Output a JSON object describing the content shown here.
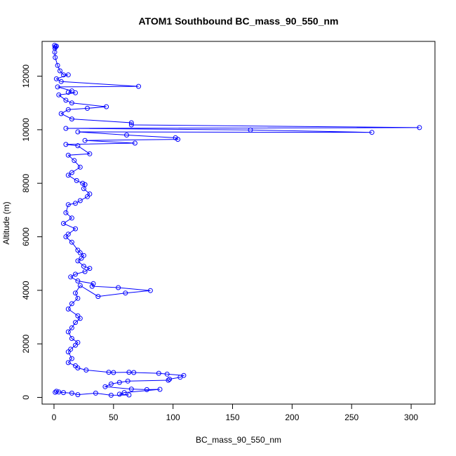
{
  "chart_data": {
    "type": "line",
    "title": "ATOM1 Southbound BC_mass_90_550_nm",
    "xlabel": "BC_mass_90_550_nm",
    "ylabel": "Altitude (m)",
    "xlim": [
      -10,
      320
    ],
    "ylim": [
      -250,
      13300
    ],
    "x_ticks": [
      0,
      50,
      100,
      150,
      200,
      250,
      300
    ],
    "y_ticks": [
      0,
      2000,
      4000,
      6000,
      8000,
      10000,
      12000
    ],
    "grid": false,
    "legend": "none",
    "colors": {
      "series": "#0000ff",
      "axis": "#000000",
      "background": "#ffffff"
    },
    "series": [
      {
        "marker": "open-circle",
        "points": [
          [
            0.5,
            13150
          ],
          [
            1.2,
            13100
          ],
          [
            0.8,
            13050
          ],
          [
            2.0,
            13120
          ],
          [
            0.6,
            12900
          ],
          [
            1.0,
            12700
          ],
          [
            3.0,
            12400
          ],
          [
            5.0,
            12200
          ],
          [
            8.0,
            12050
          ],
          [
            12.0,
            12050
          ],
          [
            2.0,
            11900
          ],
          [
            6.0,
            11800
          ],
          [
            71.0,
            11620
          ],
          [
            3.0,
            11600
          ],
          [
            15.0,
            11450
          ],
          [
            12.0,
            11400
          ],
          [
            18.0,
            11380
          ],
          [
            4.0,
            11300
          ],
          [
            10.0,
            11100
          ],
          [
            15.0,
            11000
          ],
          [
            44.0,
            10860
          ],
          [
            28.0,
            10800
          ],
          [
            12.0,
            10750
          ],
          [
            6.0,
            10600
          ],
          [
            15.0,
            10400
          ],
          [
            65.0,
            10260
          ],
          [
            65.0,
            10180
          ],
          [
            307.0,
            10080
          ],
          [
            10.0,
            10050
          ],
          [
            165.0,
            9990
          ],
          [
            267.0,
            9900
          ],
          [
            20.0,
            9920
          ],
          [
            61.0,
            9800
          ],
          [
            102.0,
            9700
          ],
          [
            104.0,
            9640
          ],
          [
            26.0,
            9600
          ],
          [
            68.0,
            9500
          ],
          [
            10.0,
            9450
          ],
          [
            20.0,
            9400
          ],
          [
            30.0,
            9100
          ],
          [
            12.0,
            9050
          ],
          [
            17.0,
            8850
          ],
          [
            22.0,
            8600
          ],
          [
            15.0,
            8400
          ],
          [
            12.0,
            8300
          ],
          [
            19.0,
            8100
          ],
          [
            24.0,
            8000
          ],
          [
            26.0,
            7950
          ],
          [
            25.0,
            7800
          ],
          [
            30.0,
            7600
          ],
          [
            28.0,
            7500
          ],
          [
            22.0,
            7350
          ],
          [
            18.0,
            7250
          ],
          [
            12.0,
            7200
          ],
          [
            10.0,
            6900
          ],
          [
            15.0,
            6700
          ],
          [
            8.0,
            6500
          ],
          [
            18.0,
            6300
          ],
          [
            12.0,
            6100
          ],
          [
            10.0,
            6000
          ],
          [
            15.0,
            5800
          ],
          [
            20.0,
            5500
          ],
          [
            22.0,
            5400
          ],
          [
            25.0,
            5300
          ],
          [
            23.0,
            5200
          ],
          [
            20.0,
            5100
          ],
          [
            25.0,
            4900
          ],
          [
            30.0,
            4820
          ],
          [
            26.0,
            4700
          ],
          [
            18.0,
            4600
          ],
          [
            14.0,
            4500
          ],
          [
            20.0,
            4350
          ],
          [
            33.0,
            4250
          ],
          [
            32.0,
            4150
          ],
          [
            54.0,
            4100
          ],
          [
            81.0,
            3990
          ],
          [
            60.0,
            3900
          ],
          [
            37.0,
            3770
          ],
          [
            22.0,
            4180
          ],
          [
            18.0,
            3900
          ],
          [
            20.0,
            3700
          ],
          [
            15.0,
            3500
          ],
          [
            12.0,
            3300
          ],
          [
            20.0,
            3050
          ],
          [
            22.0,
            2950
          ],
          [
            18.0,
            2800
          ],
          [
            15.0,
            2600
          ],
          [
            12.0,
            2450
          ],
          [
            15.0,
            2200
          ],
          [
            20.0,
            2050
          ],
          [
            18.0,
            1950
          ],
          [
            14.0,
            1800
          ],
          [
            12.0,
            1700
          ],
          [
            15.0,
            1450
          ],
          [
            12.0,
            1300
          ],
          [
            18.0,
            1180
          ],
          [
            20.0,
            1100
          ],
          [
            27.0,
            1020
          ],
          [
            46.0,
            940
          ],
          [
            50.0,
            930
          ],
          [
            63.0,
            940
          ],
          [
            67.0,
            930
          ],
          [
            88.0,
            900
          ],
          [
            95.0,
            870
          ],
          [
            109.0,
            820
          ],
          [
            106.0,
            750
          ],
          [
            97.0,
            680
          ],
          [
            96.0,
            640
          ],
          [
            62.0,
            610
          ],
          [
            55.0,
            560
          ],
          [
            48.0,
            500
          ],
          [
            43.0,
            400
          ],
          [
            65.0,
            310
          ],
          [
            78.0,
            290
          ],
          [
            89.0,
            300
          ],
          [
            59.0,
            180
          ],
          [
            55.0,
            120
          ],
          [
            63.0,
            90
          ],
          [
            48.0,
            80
          ],
          [
            35.0,
            160
          ],
          [
            20.0,
            100
          ],
          [
            15.0,
            160
          ],
          [
            8.0,
            180
          ],
          [
            4.0,
            200
          ],
          [
            2.0,
            230
          ],
          [
            1.0,
            190
          ]
        ]
      }
    ]
  }
}
